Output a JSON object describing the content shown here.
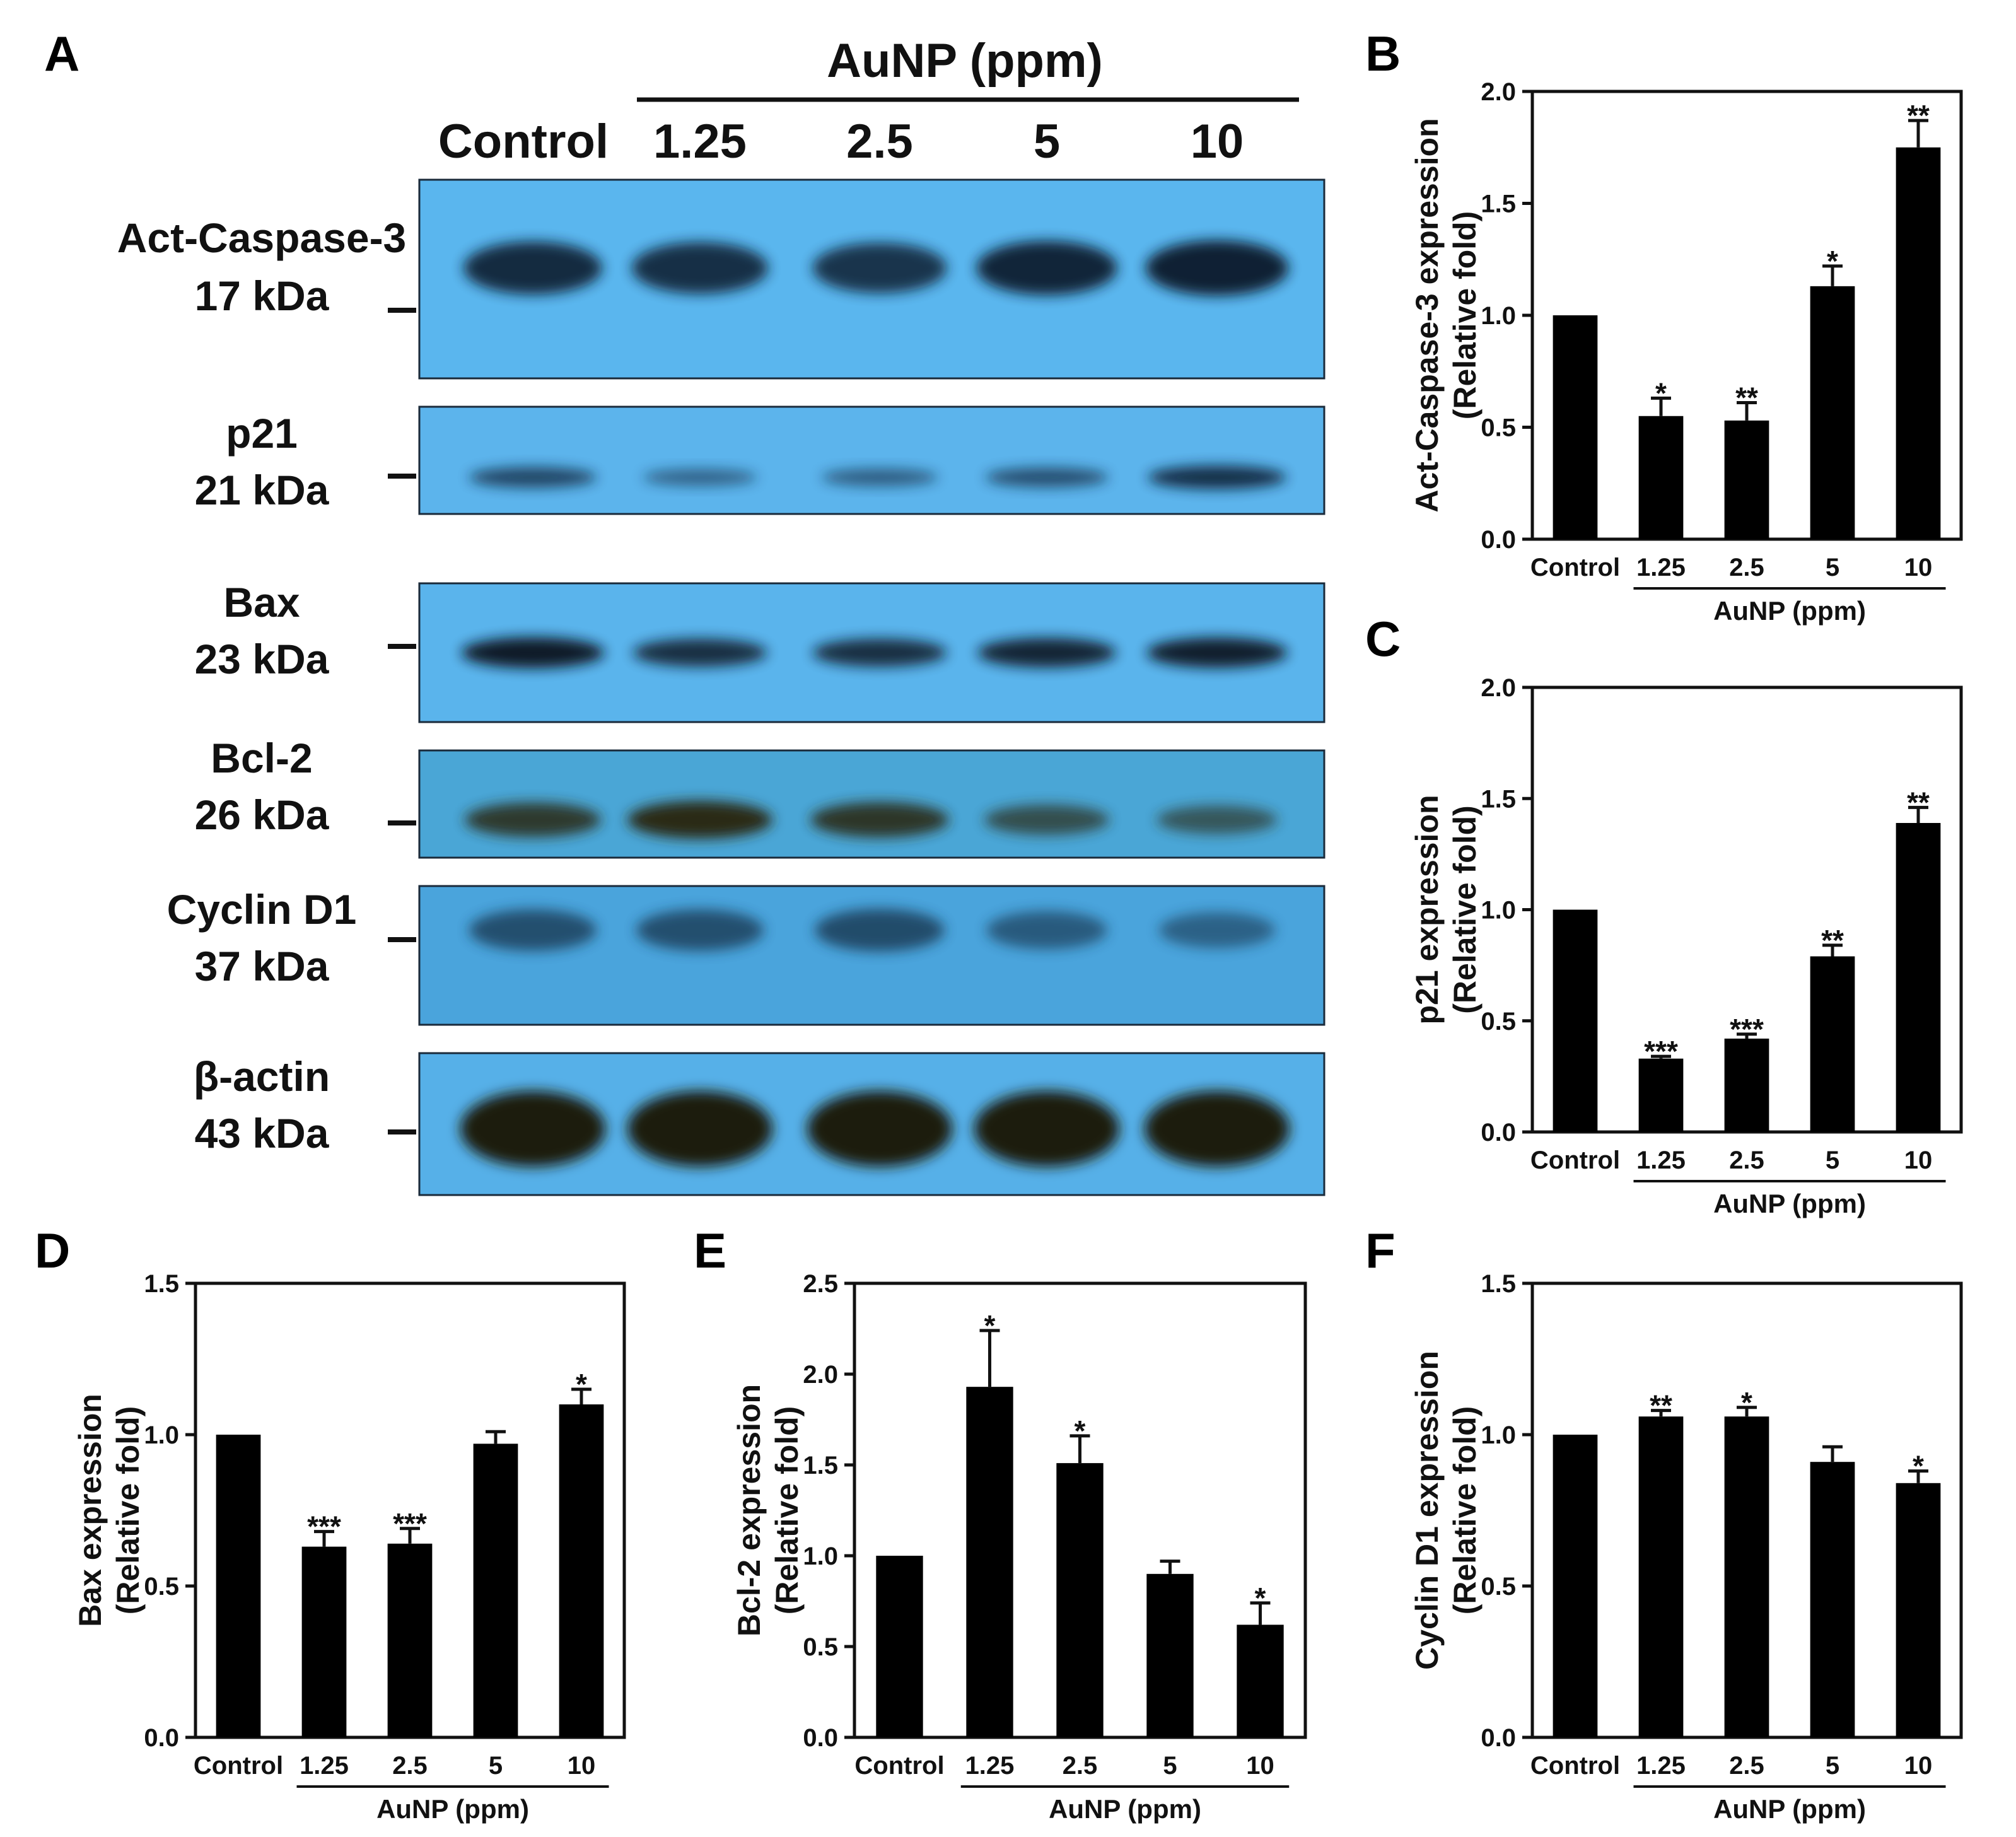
{
  "figure": {
    "panel_a": {
      "letter": "A",
      "treatment_label": "AuNP (ppm)",
      "lanes": [
        "Control",
        "1.25",
        "2.5",
        "5",
        "10"
      ],
      "blots": [
        {
          "protein": "Act-Caspase-3",
          "size": "17 kDa",
          "intensity": [
            0.85,
            0.8,
            0.75,
            0.9,
            0.95
          ],
          "band_color": "#0b1a2e",
          "membrane_color": "#5ab6ee"
        },
        {
          "protein": "p21",
          "size": "21 kDa",
          "intensity": [
            0.6,
            0.3,
            0.35,
            0.5,
            0.85
          ],
          "band_color": "#0d2038",
          "membrane_color": "#5cb4ec"
        },
        {
          "protein": "Bax",
          "size": "23 kDa",
          "intensity": [
            0.95,
            0.75,
            0.75,
            0.85,
            0.9
          ],
          "band_color": "#071222",
          "membrane_color": "#5ab4ec"
        },
        {
          "protein": "Bcl-2",
          "size": "26 kDa",
          "intensity": [
            0.8,
            1.0,
            0.85,
            0.55,
            0.45
          ],
          "band_color": "#2a2a12",
          "membrane_color": "#4aa6d6"
        },
        {
          "protein": "Cyclin D1",
          "size": "37 kDa",
          "intensity": [
            0.6,
            0.6,
            0.65,
            0.45,
            0.35
          ],
          "band_color": "#183048",
          "membrane_color": "#4aa4dc"
        },
        {
          "protein": "β-actin",
          "size": "43 kDa",
          "intensity": [
            1.0,
            1.0,
            1.0,
            1.0,
            1.0
          ],
          "band_color": "#1e1a0e",
          "membrane_color": "#56b0e8"
        }
      ]
    }
  },
  "chart_data": [
    {
      "panel": "B",
      "type": "bar",
      "categories": [
        "Control",
        "1.25",
        "2.5",
        "5",
        "10"
      ],
      "values": [
        1.0,
        0.55,
        0.53,
        1.13,
        1.75
      ],
      "errors": [
        0,
        0.08,
        0.08,
        0.09,
        0.12
      ],
      "significance": [
        "",
        "*",
        "**",
        "*",
        "**"
      ],
      "ylabel": [
        "Act-Caspase-3 expression",
        "(Relative fold)"
      ],
      "group_label": "AuNP (ppm)",
      "ylim": [
        0,
        2.0
      ],
      "yticks": [
        0.0,
        0.5,
        1.0,
        1.5,
        2.0
      ],
      "ytick_labels": [
        "0.0",
        "0.5",
        "1.0",
        "1.5",
        "2.0"
      ]
    },
    {
      "panel": "C",
      "type": "bar",
      "categories": [
        "Control",
        "1.25",
        "2.5",
        "5",
        "10"
      ],
      "values": [
        1.0,
        0.33,
        0.42,
        0.79,
        1.39
      ],
      "errors": [
        0,
        0.01,
        0.02,
        0.05,
        0.07
      ],
      "significance": [
        "",
        "***",
        "***",
        "**",
        "**"
      ],
      "ylabel": [
        "p21 expression",
        "(Relative fold)"
      ],
      "group_label": "AuNP (ppm)",
      "ylim": [
        0,
        2.0
      ],
      "yticks": [
        0.0,
        0.5,
        1.0,
        1.5,
        2.0
      ],
      "ytick_labels": [
        "0.0",
        "0.5",
        "1.0",
        "1.5",
        "2.0"
      ]
    },
    {
      "panel": "D",
      "type": "bar",
      "categories": [
        "Control",
        "1.25",
        "2.5",
        "5",
        "10"
      ],
      "values": [
        1.0,
        0.63,
        0.64,
        0.97,
        1.1
      ],
      "errors": [
        0,
        0.05,
        0.05,
        0.04,
        0.05
      ],
      "significance": [
        "",
        "***",
        "***",
        "",
        "*"
      ],
      "ylabel": [
        "Bax expression",
        "(Relative fold)"
      ],
      "group_label": "AuNP (ppm)",
      "ylim": [
        0,
        1.5
      ],
      "yticks": [
        0.0,
        0.5,
        1.0,
        1.5
      ],
      "ytick_labels": [
        "0.0",
        "0.5",
        "1.0",
        "1.5"
      ]
    },
    {
      "panel": "E",
      "type": "bar",
      "categories": [
        "Control",
        "1.25",
        "2.5",
        "5",
        "10"
      ],
      "values": [
        1.0,
        1.93,
        1.51,
        0.9,
        0.62
      ],
      "errors": [
        0,
        0.31,
        0.15,
        0.07,
        0.12
      ],
      "significance": [
        "",
        "*",
        "*",
        "",
        "*"
      ],
      "ylabel": [
        "Bcl-2 expression",
        "(Relative fold)"
      ],
      "group_label": "AuNP (ppm)",
      "ylim": [
        0,
        2.5
      ],
      "yticks": [
        0.0,
        0.5,
        1.0,
        1.5,
        2.0,
        2.5
      ],
      "ytick_labels": [
        "0.0",
        "0.5",
        "1.0",
        "1.5",
        "2.0",
        "2.5"
      ]
    },
    {
      "panel": "F",
      "type": "bar",
      "categories": [
        "Control",
        "1.25",
        "2.5",
        "5",
        "10"
      ],
      "values": [
        1.0,
        1.06,
        1.06,
        0.91,
        0.84
      ],
      "errors": [
        0,
        0.02,
        0.03,
        0.05,
        0.04
      ],
      "significance": [
        "",
        "**",
        "*",
        "",
        "*"
      ],
      "ylabel": [
        "Cyclin D1 expression",
        "(Relative fold)"
      ],
      "group_label": "AuNP (ppm)",
      "ylim": [
        0,
        1.5
      ],
      "yticks": [
        0.0,
        0.5,
        1.0,
        1.5
      ],
      "ytick_labels": [
        "0.0",
        "0.5",
        "1.0",
        "1.5"
      ]
    }
  ]
}
